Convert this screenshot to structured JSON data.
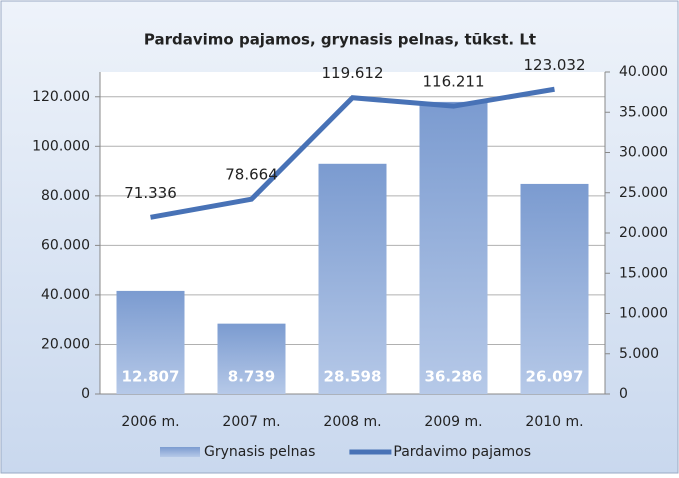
{
  "chart_data": {
    "type": "bar",
    "title": "Pardavimo pajamos, grynasis pelnas, tūkst. Lt",
    "categories": [
      "2006 m.",
      "2007 m.",
      "2008 m.",
      "2009 m.",
      "2010 m."
    ],
    "series": [
      {
        "name": "Grynasis pelnas",
        "type": "bar",
        "axis": "y2",
        "color": "#8ca8d8",
        "values": [
          12807,
          8739,
          28598,
          36286,
          26097
        ],
        "value_labels": [
          "12.807",
          "8.739",
          "28.598",
          "36.286",
          "26.097"
        ]
      },
      {
        "name": "Pardavimo pajamos",
        "type": "line",
        "color": "#4872b6",
        "values": [
          71336,
          78664,
          119612,
          116211,
          123032
        ],
        "value_labels": [
          "71.336",
          "78.664",
          "119.612",
          "116.211",
          "123.032"
        ]
      }
    ],
    "ylim": [
      0,
      130000
    ],
    "yticks": [
      0,
      {
        "value": 20000,
        "label": "20.000"
      },
      {
        "value": 40000,
        "label": "40.000"
      },
      {
        "value": 60000,
        "label": "60.000"
      },
      {
        "value": 80000,
        "label": "80.000"
      },
      {
        "value": 100000,
        "label": "100.000"
      },
      {
        "value": 120000,
        "label": "120.000"
      }
    ],
    "y2lim": [
      0,
      40000
    ],
    "y2ticks": [
      0,
      {
        "value": 5000,
        "label": "5.000"
      },
      {
        "value": 10000,
        "label": "10.000"
      },
      {
        "value": 15000,
        "label": "15.000"
      },
      {
        "value": 20000,
        "label": "20.000"
      },
      {
        "value": 25000,
        "label": "25.000"
      },
      {
        "value": 30000,
        "label": "30.000"
      },
      {
        "value": 35000,
        "label": "35.000"
      },
      {
        "value": 40000,
        "label": "40.000"
      }
    ],
    "grid": true,
    "legend": "bottom"
  }
}
